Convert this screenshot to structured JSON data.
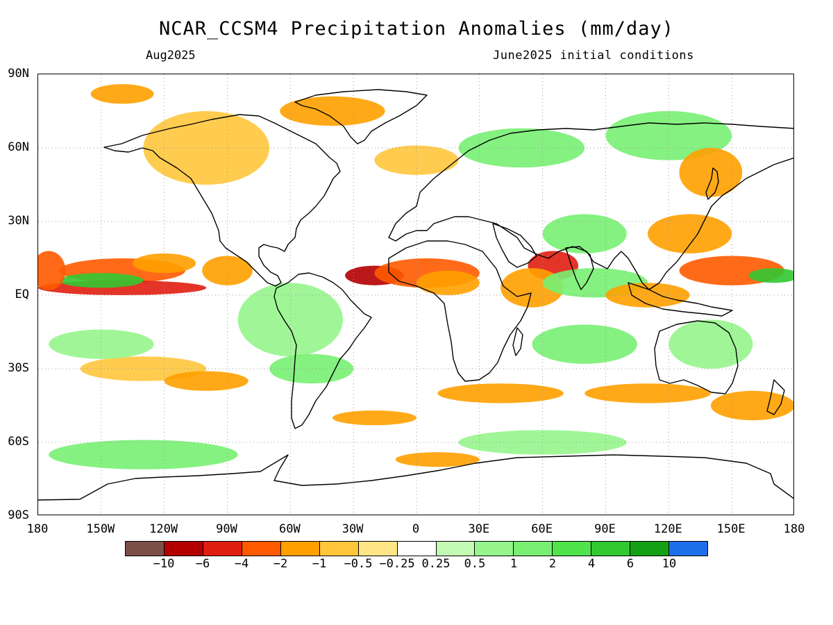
{
  "title": "NCAR_CCSM4 Precipitation Anomalies (mm/day)",
  "valid_month": "Aug2025",
  "initial_conditions": "June2025 initial conditions",
  "lat_labels": [
    "90N",
    "60N",
    "30N",
    "EQ",
    "30S",
    "60S",
    "90S"
  ],
  "lon_labels": [
    "180",
    "150W",
    "120W",
    "90W",
    "60W",
    "30W",
    "0",
    "30E",
    "60E",
    "90E",
    "120E",
    "150E",
    "180"
  ],
  "colorbar": {
    "colors": [
      "#7a4f45",
      "#b40000",
      "#e01e10",
      "#ff5a00",
      "#ffa000",
      "#ffc63c",
      "#ffe585",
      "#ffffff",
      "#c3fbb4",
      "#96f58c",
      "#78ef73",
      "#50e34b",
      "#32c832",
      "#14a014",
      "#1e6eeb"
    ],
    "labels": [
      "−10",
      "−6",
      "−4",
      "−2",
      "−1",
      "−0.5",
      "−0.25",
      "0.25",
      "0.5",
      "1",
      "2",
      "4",
      "6",
      "10"
    ]
  },
  "anomaly_regions": [
    {
      "lon": -140,
      "lat": 10,
      "rx": 30,
      "ry": 5,
      "level": "-2"
    },
    {
      "lon": -140,
      "lat": 3,
      "rx": 40,
      "ry": 3,
      "level": "-4"
    },
    {
      "lon": -150,
      "lat": 6,
      "rx": 20,
      "ry": 3,
      "level": "4"
    },
    {
      "lon": -120,
      "lat": 13,
      "rx": 15,
      "ry": 4,
      "level": "-1"
    },
    {
      "lon": -175,
      "lat": 10,
      "rx": 8,
      "ry": 8,
      "level": "-2"
    },
    {
      "lon": -90,
      "lat": 10,
      "rx": 12,
      "ry": 6,
      "level": "-1"
    },
    {
      "lon": -20,
      "lat": 8,
      "rx": 14,
      "ry": 4,
      "level": "-6"
    },
    {
      "lon": 5,
      "lat": 9,
      "rx": 25,
      "ry": 6,
      "level": "-2"
    },
    {
      "lon": 15,
      "lat": 5,
      "rx": 15,
      "ry": 5,
      "level": "-1"
    },
    {
      "lon": 65,
      "lat": 12,
      "rx": 12,
      "ry": 6,
      "level": "-4"
    },
    {
      "lon": 55,
      "lat": 3,
      "rx": 15,
      "ry": 8,
      "level": "-1"
    },
    {
      "lon": 85,
      "lat": 5,
      "rx": 25,
      "ry": 6,
      "level": "1"
    },
    {
      "lon": 110,
      "lat": 0,
      "rx": 20,
      "ry": 5,
      "level": "-1"
    },
    {
      "lon": 150,
      "lat": 10,
      "rx": 25,
      "ry": 6,
      "level": "-2"
    },
    {
      "lon": 170,
      "lat": 8,
      "rx": 12,
      "ry": 3,
      "level": "4"
    },
    {
      "lon": 130,
      "lat": 25,
      "rx": 20,
      "ry": 8,
      "level": "-1"
    },
    {
      "lon": 80,
      "lat": 25,
      "rx": 20,
      "ry": 8,
      "level": "1"
    },
    {
      "lon": -100,
      "lat": 60,
      "rx": 30,
      "ry": 15,
      "level": "-0.5"
    },
    {
      "lon": -40,
      "lat": 75,
      "rx": 25,
      "ry": 6,
      "level": "-1"
    },
    {
      "lon": -140,
      "lat": 82,
      "rx": 15,
      "ry": 4,
      "level": "-1"
    },
    {
      "lon": 0,
      "lat": 55,
      "rx": 20,
      "ry": 6,
      "level": "-0.5"
    },
    {
      "lon": 50,
      "lat": 60,
      "rx": 30,
      "ry": 8,
      "level": "1"
    },
    {
      "lon": 120,
      "lat": 65,
      "rx": 30,
      "ry": 10,
      "level": "1"
    },
    {
      "lon": 140,
      "lat": 50,
      "rx": 15,
      "ry": 10,
      "level": "-1"
    },
    {
      "lon": -60,
      "lat": -10,
      "rx": 25,
      "ry": 15,
      "level": "0.5"
    },
    {
      "lon": -50,
      "lat": -30,
      "rx": 20,
      "ry": 6,
      "level": "1"
    },
    {
      "lon": -130,
      "lat": -30,
      "rx": 30,
      "ry": 5,
      "level": "-0.5"
    },
    {
      "lon": -150,
      "lat": -20,
      "rx": 25,
      "ry": 6,
      "level": "0.5"
    },
    {
      "lon": -100,
      "lat": -35,
      "rx": 20,
      "ry": 4,
      "level": "-1"
    },
    {
      "lon": 40,
      "lat": -40,
      "rx": 30,
      "ry": 4,
      "level": "-1"
    },
    {
      "lon": 110,
      "lat": -40,
      "rx": 30,
      "ry": 4,
      "level": "-1"
    },
    {
      "lon": 160,
      "lat": -45,
      "rx": 20,
      "ry": 6,
      "level": "-1"
    },
    {
      "lon": 80,
      "lat": -20,
      "rx": 25,
      "ry": 8,
      "level": "1"
    },
    {
      "lon": 140,
      "lat": -20,
      "rx": 20,
      "ry": 10,
      "level": "0.5"
    },
    {
      "lon": -130,
      "lat": -65,
      "rx": 45,
      "ry": 6,
      "level": "1"
    },
    {
      "lon": 60,
      "lat": -60,
      "rx": 40,
      "ry": 5,
      "level": "0.5"
    },
    {
      "lon": 10,
      "lat": -67,
      "rx": 20,
      "ry": 3,
      "level": "-1"
    },
    {
      "lon": -20,
      "lat": -50,
      "rx": 20,
      "ry": 3,
      "level": "-1"
    }
  ]
}
